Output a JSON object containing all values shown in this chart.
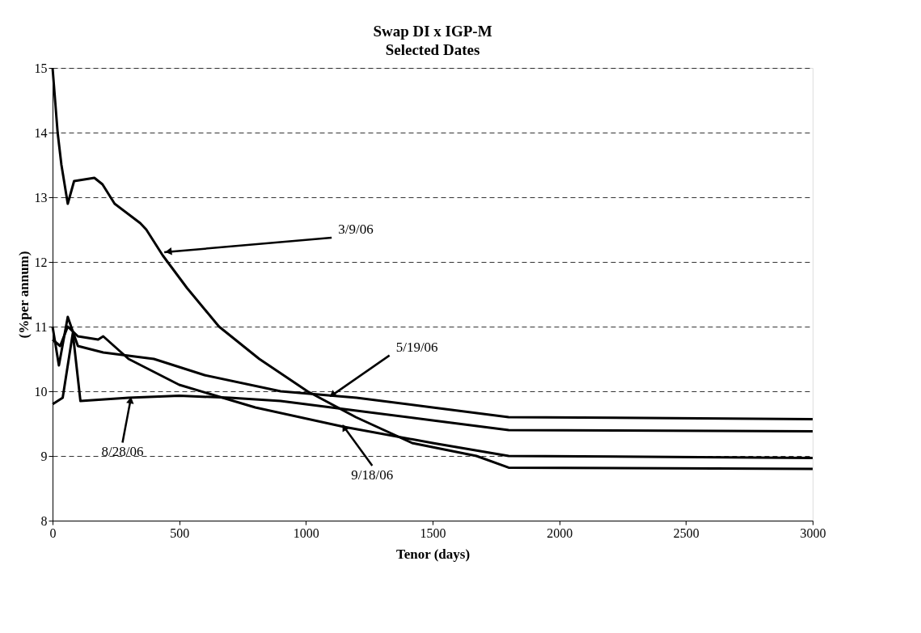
{
  "chart_data": {
    "type": "line",
    "title": "Swap DI x IGP-M",
    "subtitle": "Selected Dates",
    "xlabel": "Tenor (days)",
    "ylabel": "(%per annum)",
    "xlim": [
      0,
      3000
    ],
    "xticks": [
      0,
      500,
      1000,
      1500,
      2000,
      2500,
      3000
    ],
    "ylim": [
      8,
      15
    ],
    "yticks": [
      8,
      9,
      10,
      11,
      12,
      13,
      14,
      15
    ],
    "grid": "y",
    "line_style": "solid",
    "legend": false,
    "series": [
      {
        "color": "#000000",
        "x": [
          0,
          20,
          35,
          60,
          85,
          165,
          197,
          245,
          346,
          370,
          435,
          530,
          657,
          816,
          1006,
          1197,
          1419,
          1673,
          1800,
          3000
        ],
        "values": [
          15,
          14,
          13.5,
          12.9,
          13.25,
          13.3,
          13.2,
          12.9,
          12.6,
          12.5,
          12.1,
          11.6,
          11.0,
          10.5,
          10.0,
          9.6,
          9.2,
          9.0,
          8.82,
          8.8
        ]
      },
      {
        "color": "#000000",
        "x": [
          0,
          25,
          60,
          100,
          200,
          400,
          600,
          900,
          1200,
          1500,
          1800,
          3000
        ],
        "values": [
          11,
          10.4,
          11.15,
          10.7,
          10.6,
          10.5,
          10.25,
          10.0,
          9.9,
          9.75,
          9.6,
          9.57
        ]
      },
      {
        "color": "#000000",
        "x": [
          0,
          40,
          80,
          110,
          300,
          500,
          700,
          900,
          1200,
          1500,
          1800,
          3000
        ],
        "values": [
          9.8,
          9.9,
          10.9,
          9.85,
          9.9,
          9.93,
          9.9,
          9.85,
          9.7,
          9.55,
          9.4,
          9.38
        ]
      },
      {
        "color": "#000000",
        "x": [
          0,
          30,
          60,
          100,
          180,
          200,
          300,
          500,
          800,
          1150,
          1500,
          1800,
          3000
        ],
        "values": [
          10.8,
          10.7,
          11.0,
          10.85,
          10.8,
          10.85,
          10.5,
          10.1,
          9.75,
          9.45,
          9.2,
          9.0,
          8.97
        ]
      }
    ],
    "annotations": [
      {
        "text": "3/9/06",
        "x": 441,
        "y": 12.15
      },
      {
        "text": "5/19/06",
        "x": 1100,
        "y": 9.93
      },
      {
        "text": "8/28/06",
        "x": 308,
        "y": 9.87
      },
      {
        "text": "9/18/06",
        "x": 1150,
        "y": 9.45
      }
    ]
  }
}
